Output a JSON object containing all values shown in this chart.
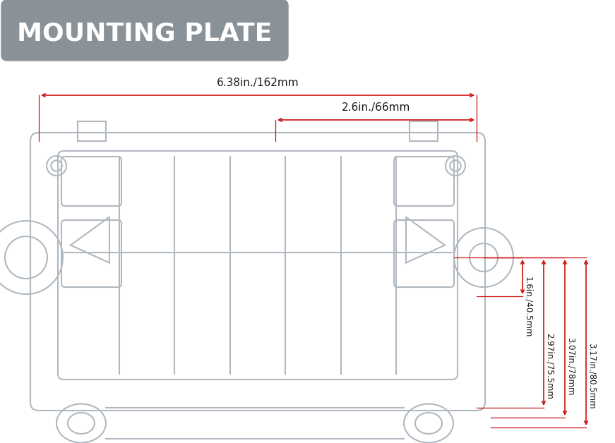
{
  "bg_color": "#ffffff",
  "title": "MOUNTING PLATE",
  "title_bg": "#8a9299",
  "title_text_color": "#ffffff",
  "drawing_color": "#b0b8c0",
  "drawing_color_dark": "#989fa8",
  "dim_color": "#cc1111",
  "dim_text_color": "#1a1a1a",
  "dims": {
    "width_label": "6.38in./162mm",
    "inner_width_label": "2.6in./66mm",
    "h1_label": "1.6in./40.5mm",
    "h2_label": "2.97in./75.5mm",
    "h3_label": "3.07in./78mm",
    "h4_label": "3.17in./80.5mm"
  },
  "figsize": [
    8.71,
    6.28
  ],
  "dpi": 100
}
